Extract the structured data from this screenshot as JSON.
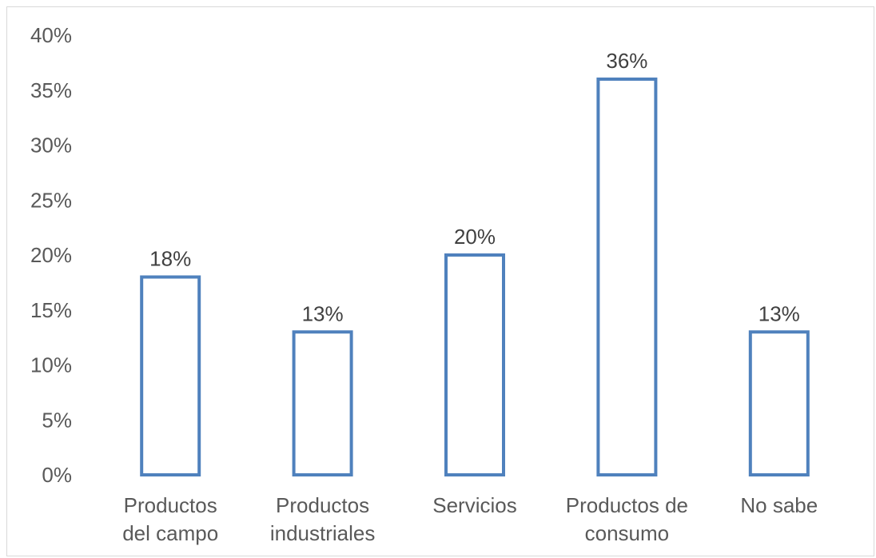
{
  "chart_data": {
    "type": "bar",
    "categories": [
      [
        "Productos",
        "del campo"
      ],
      [
        "Productos",
        "industriales"
      ],
      [
        "Servicios"
      ],
      [
        "Productos de",
        "consumo"
      ],
      [
        "No sabe"
      ]
    ],
    "values": [
      18,
      13,
      20,
      36,
      13
    ],
    "data_labels": [
      "18%",
      "13%",
      "20%",
      "36%",
      "13%"
    ],
    "y_ticks": [
      "0%",
      "5%",
      "10%",
      "15%",
      "20%",
      "25%",
      "30%",
      "35%",
      "40%"
    ],
    "ylim": [
      0,
      40
    ],
    "title": "",
    "xlabel": "",
    "ylabel": "",
    "grid": false,
    "bar_style": "outline",
    "bar_color": "#4f81bd"
  }
}
